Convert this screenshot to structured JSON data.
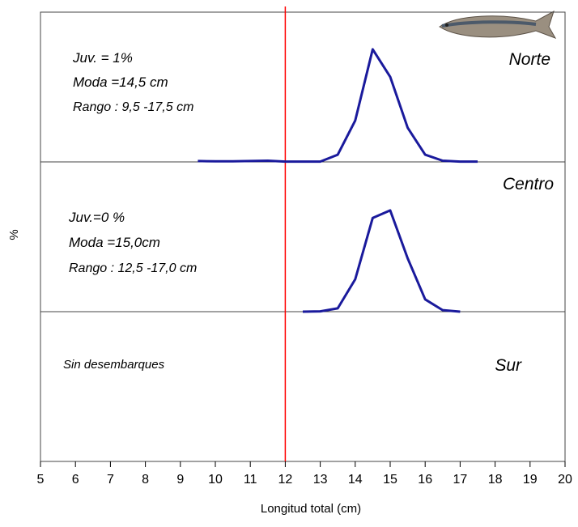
{
  "chart_data": {
    "type": "line",
    "xlabel": "Longitud total (cm)",
    "ylabel": "%",
    "xlim": [
      5,
      20
    ],
    "xticks": [
      5,
      6,
      7,
      8,
      9,
      10,
      11,
      12,
      13,
      14,
      15,
      16,
      17,
      18,
      19,
      20
    ],
    "ylim": [
      0,
      50
    ],
    "reference_line": {
      "x": 12,
      "color": "#ff0000"
    },
    "series": [
      {
        "name": "Norte",
        "color": "#1a1a9c",
        "annotations": [
          "Juv. = 1%",
          "Moda =14,5  cm",
          "Rango : 9,5 -17,5 cm"
        ],
        "x": [
          9.5,
          10,
          10.5,
          11,
          11.5,
          12,
          12.5,
          13,
          13.5,
          14,
          14.5,
          15,
          15.5,
          16,
          16.5,
          17,
          17.5
        ],
        "values": [
          0.3,
          0.2,
          0.2,
          0.3,
          0.4,
          0.1,
          0.1,
          0.1,
          2.4,
          13.8,
          37.6,
          28.4,
          11.4,
          2.4,
          0.4,
          0.1,
          0.1
        ]
      },
      {
        "name": "Centro",
        "color": "#1a1a9c",
        "annotations": [
          "Juv.=0 %",
          "Moda =15,0cm",
          "Rango : 12,5 -17,0 cm"
        ],
        "x": [
          12.5,
          13,
          13.5,
          14,
          14.5,
          15,
          15.5,
          16,
          16.5,
          17
        ],
        "values": [
          0,
          0.1,
          1.1,
          10.8,
          31.3,
          33.8,
          17.8,
          4.1,
          0.5,
          0
        ]
      },
      {
        "name": "Sur",
        "color": "#1a1a9c",
        "annotations": [
          "Sin desembarques"
        ],
        "x": [],
        "values": []
      }
    ]
  }
}
